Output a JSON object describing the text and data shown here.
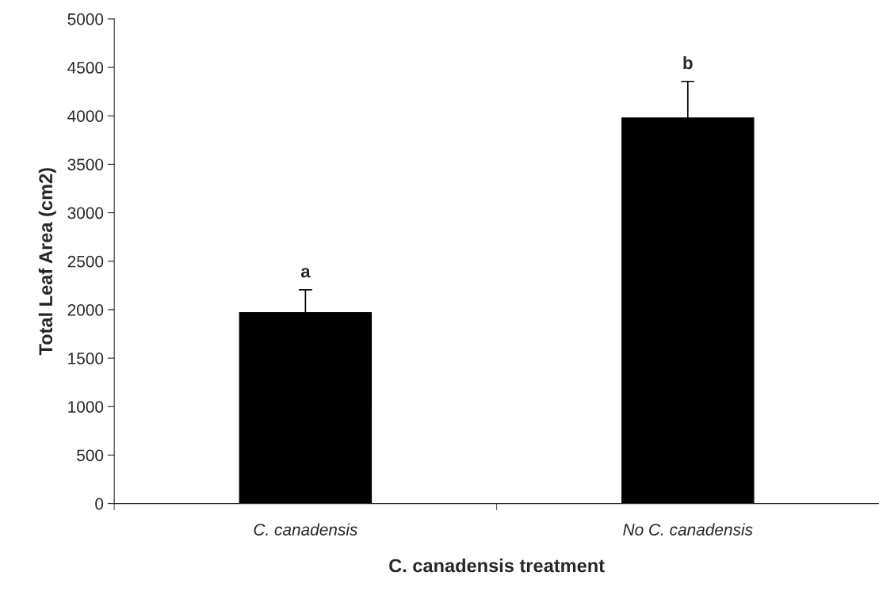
{
  "chart_data": {
    "type": "bar",
    "categories": [
      "C. canadensis",
      "No C. canadensis"
    ],
    "values": [
      1980,
      3990
    ],
    "errors": [
      225,
      365
    ],
    "color": "#000000",
    "xlabel": "C. canadensis treatment",
    "ylabel": "Total Leaf Area (cm2)",
    "ylim": [
      0,
      5000
    ],
    "yticks": [
      0,
      500,
      1000,
      1500,
      2000,
      2500,
      3000,
      3500,
      4000,
      4500,
      5000
    ],
    "annotations": [
      "a",
      "b"
    ],
    "grid": false,
    "legend": false
  }
}
